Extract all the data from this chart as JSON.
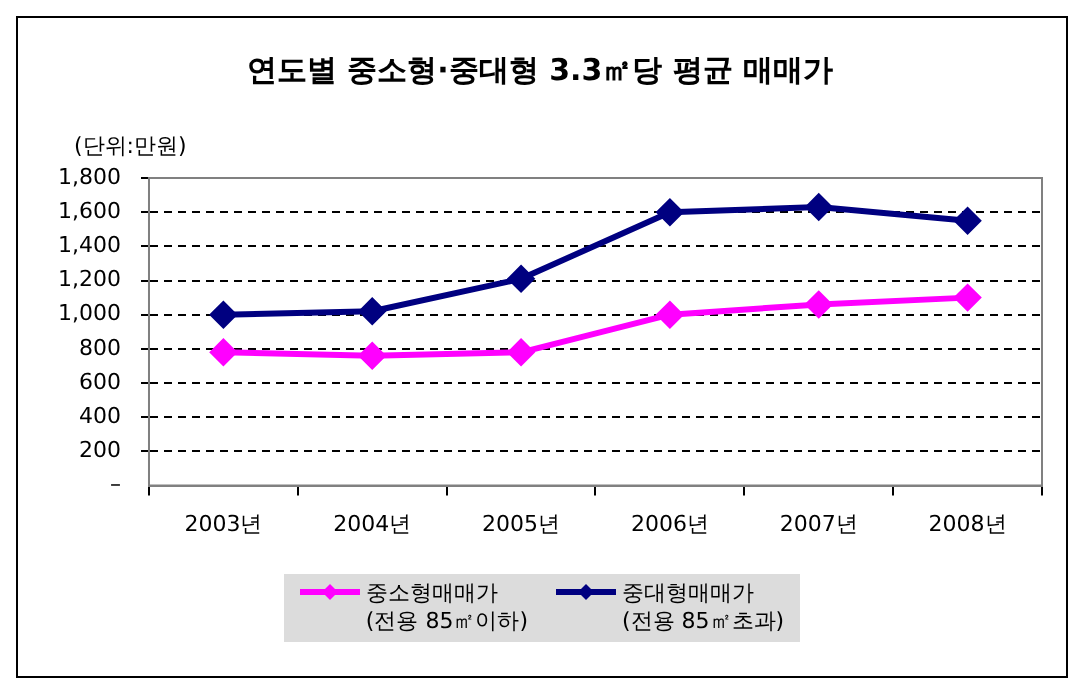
{
  "chart_data": {
    "type": "line",
    "title": "연도별 중소형·중대형 3.3㎡당 평균 매매가",
    "ylabel": "(단위:만원)",
    "categories": [
      "2003년",
      "2004년",
      "2005년",
      "2006년",
      "2007년",
      "2008년"
    ],
    "series": [
      {
        "name": "중소형매매가\n(전용 85㎡이하)",
        "color": "#ff00ff",
        "values": [
          780,
          760,
          780,
          1000,
          1060,
          1100
        ]
      },
      {
        "name": "중대형매매가\n(전용 85㎡초과)",
        "color": "#000080",
        "values": [
          1000,
          1020,
          1210,
          1600,
          1630,
          1550
        ]
      }
    ],
    "ylim": [
      0,
      1800
    ],
    "yticks": [
      {
        "value": 0,
        "label": "–"
      },
      200,
      400,
      600,
      800,
      {
        "value": 1000,
        "label": "1,000"
      },
      {
        "value": 1200,
        "label": "1,200"
      },
      {
        "value": 1400,
        "label": "1,400"
      },
      {
        "value": 1600,
        "label": "1,600"
      },
      {
        "value": 1800,
        "label": "1,800"
      }
    ],
    "grid": "y",
    "legend": "bottom",
    "marker": "diamond",
    "line_style": "solid"
  }
}
